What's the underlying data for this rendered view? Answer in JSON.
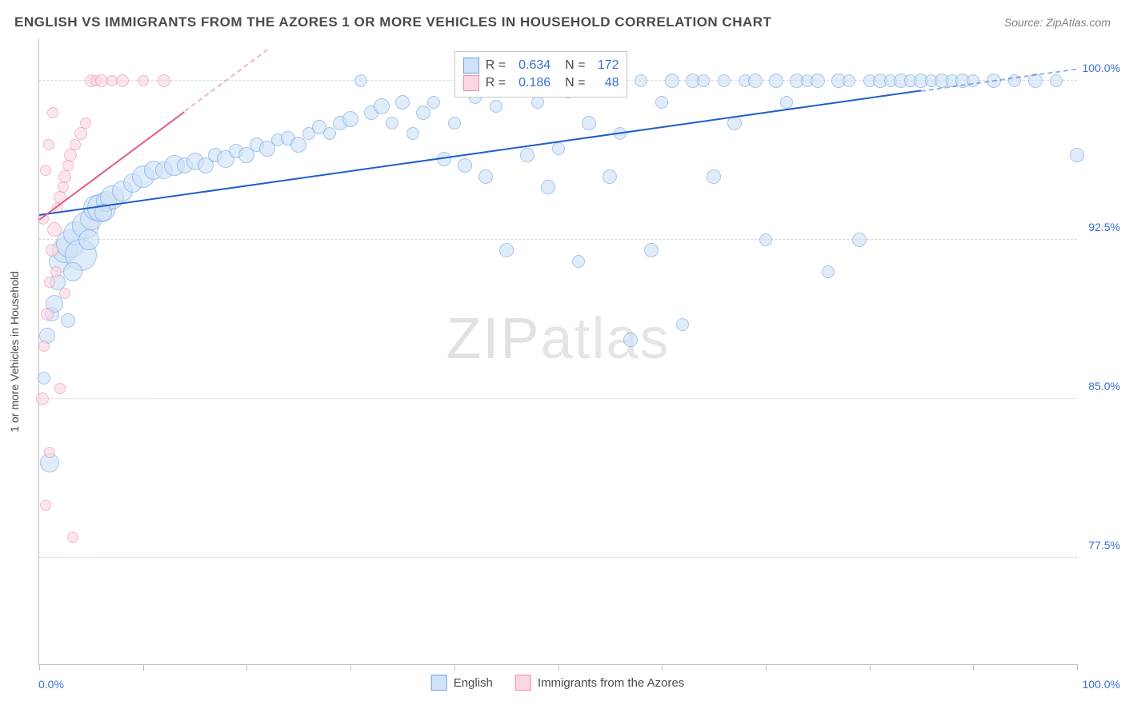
{
  "title": "ENGLISH VS IMMIGRANTS FROM THE AZORES 1 OR MORE VEHICLES IN HOUSEHOLD CORRELATION CHART",
  "source": "Source: ZipAtlas.com",
  "yaxis_title": "1 or more Vehicles in Household",
  "watermark": {
    "bold": "ZIP",
    "thin": "atlas"
  },
  "chart": {
    "type": "scatter",
    "xlim": [
      0,
      100
    ],
    "ylim": [
      72.5,
      102
    ],
    "x_min_label": "0.0%",
    "x_max_label": "100.0%",
    "x_ticks": [
      0,
      10,
      20,
      30,
      40,
      50,
      60,
      70,
      80,
      90,
      100
    ],
    "y_gridlines": [
      {
        "y": 100.0,
        "label": "100.0%"
      },
      {
        "y": 92.5,
        "label": "92.5%"
      },
      {
        "y": 85.0,
        "label": "85.0%"
      },
      {
        "y": 77.5,
        "label": "77.5%"
      }
    ],
    "background_color": "#ffffff",
    "grid_color": "#d9d9d9",
    "axis_color": "#bfbfbf",
    "value_text_color": "#3b6fd6",
    "series": [
      {
        "name": "English",
        "fill": "#cfe2f8",
        "stroke": "#6ea3e0",
        "fill_opacity": 0.62,
        "trend": {
          "x1": 0,
          "y1": 93.7,
          "x2": 100,
          "y2": 100.6,
          "color": "#1f5fc7",
          "dash_after_x": 85
        },
        "r_label": "R =",
        "r_value": "0.634",
        "n_label": "N =",
        "n_value": "172",
        "points": [
          {
            "x": 1.0,
            "y": 82.0,
            "r": 12
          },
          {
            "x": 0.8,
            "y": 88.0,
            "r": 10
          },
          {
            "x": 1.2,
            "y": 89.0,
            "r": 9
          },
          {
            "x": 1.5,
            "y": 89.5,
            "r": 11
          },
          {
            "x": 2.0,
            "y": 91.5,
            "r": 14
          },
          {
            "x": 2.5,
            "y": 92.0,
            "r": 16
          },
          {
            "x": 3.0,
            "y": 92.3,
            "r": 18
          },
          {
            "x": 3.5,
            "y": 92.8,
            "r": 15
          },
          {
            "x": 4.0,
            "y": 91.8,
            "r": 20
          },
          {
            "x": 4.5,
            "y": 93.2,
            "r": 17
          },
          {
            "x": 5.0,
            "y": 93.5,
            "r": 14
          },
          {
            "x": 5.5,
            "y": 94.0,
            "r": 16
          },
          {
            "x": 6.0,
            "y": 94.0,
            "r": 18
          },
          {
            "x": 6.5,
            "y": 94.3,
            "r": 13
          },
          {
            "x": 7.0,
            "y": 94.5,
            "r": 15
          },
          {
            "x": 8.0,
            "y": 94.8,
            "r": 13
          },
          {
            "x": 9.0,
            "y": 95.2,
            "r": 12
          },
          {
            "x": 10.0,
            "y": 95.5,
            "r": 14
          },
          {
            "x": 11.0,
            "y": 95.8,
            "r": 12
          },
          {
            "x": 12.0,
            "y": 95.8,
            "r": 11
          },
          {
            "x": 13.0,
            "y": 96.0,
            "r": 13
          },
          {
            "x": 14.0,
            "y": 96.0,
            "r": 10
          },
          {
            "x": 15.0,
            "y": 96.2,
            "r": 11
          },
          {
            "x": 16.0,
            "y": 96.0,
            "r": 10
          },
          {
            "x": 17.0,
            "y": 96.5,
            "r": 9
          },
          {
            "x": 18.0,
            "y": 96.3,
            "r": 11
          },
          {
            "x": 19.0,
            "y": 96.7,
            "r": 9
          },
          {
            "x": 20.0,
            "y": 96.5,
            "r": 10
          },
          {
            "x": 21.0,
            "y": 97.0,
            "r": 9
          },
          {
            "x": 22.0,
            "y": 96.8,
            "r": 10
          },
          {
            "x": 23.0,
            "y": 97.2,
            "r": 8
          },
          {
            "x": 24.0,
            "y": 97.3,
            "r": 9
          },
          {
            "x": 25.0,
            "y": 97.0,
            "r": 10
          },
          {
            "x": 26.0,
            "y": 97.5,
            "r": 8
          },
          {
            "x": 27.0,
            "y": 97.8,
            "r": 9
          },
          {
            "x": 28.0,
            "y": 97.5,
            "r": 8
          },
          {
            "x": 29.0,
            "y": 98.0,
            "r": 9
          },
          {
            "x": 30.0,
            "y": 98.2,
            "r": 10
          },
          {
            "x": 31.0,
            "y": 100.0,
            "r": 8
          },
          {
            "x": 32.0,
            "y": 98.5,
            "r": 9
          },
          {
            "x": 33.0,
            "y": 98.8,
            "r": 10
          },
          {
            "x": 34.0,
            "y": 98.0,
            "r": 8
          },
          {
            "x": 35.0,
            "y": 99.0,
            "r": 9
          },
          {
            "x": 36.0,
            "y": 97.5,
            "r": 8
          },
          {
            "x": 37.0,
            "y": 98.5,
            "r": 9
          },
          {
            "x": 38.0,
            "y": 99.0,
            "r": 8
          },
          {
            "x": 39.0,
            "y": 96.3,
            "r": 9
          },
          {
            "x": 40.0,
            "y": 98.0,
            "r": 8
          },
          {
            "x": 41.0,
            "y": 96.0,
            "r": 9
          },
          {
            "x": 42.0,
            "y": 99.2,
            "r": 8
          },
          {
            "x": 43.0,
            "y": 95.5,
            "r": 9
          },
          {
            "x": 44.0,
            "y": 98.8,
            "r": 8
          },
          {
            "x": 45.0,
            "y": 92.0,
            "r": 9
          },
          {
            "x": 46.0,
            "y": 99.5,
            "r": 8
          },
          {
            "x": 47.0,
            "y": 96.5,
            "r": 9
          },
          {
            "x": 48.0,
            "y": 99.0,
            "r": 8
          },
          {
            "x": 49.0,
            "y": 95.0,
            "r": 9
          },
          {
            "x": 50.0,
            "y": 96.8,
            "r": 8
          },
          {
            "x": 51.0,
            "y": 99.5,
            "r": 9
          },
          {
            "x": 52.0,
            "y": 91.5,
            "r": 8
          },
          {
            "x": 53.0,
            "y": 98.0,
            "r": 9
          },
          {
            "x": 54.0,
            "y": 100.0,
            "r": 8
          },
          {
            "x": 55.0,
            "y": 95.5,
            "r": 9
          },
          {
            "x": 56.0,
            "y": 97.5,
            "r": 8
          },
          {
            "x": 57.0,
            "y": 87.8,
            "r": 9
          },
          {
            "x": 58.0,
            "y": 100.0,
            "r": 8
          },
          {
            "x": 59.0,
            "y": 92.0,
            "r": 9
          },
          {
            "x": 60.0,
            "y": 99.0,
            "r": 8
          },
          {
            "x": 61.0,
            "y": 100.0,
            "r": 9
          },
          {
            "x": 62.0,
            "y": 88.5,
            "r": 8
          },
          {
            "x": 63.0,
            "y": 100.0,
            "r": 9
          },
          {
            "x": 64.0,
            "y": 100.0,
            "r": 8
          },
          {
            "x": 65.0,
            "y": 95.5,
            "r": 9
          },
          {
            "x": 66.0,
            "y": 100.0,
            "r": 8
          },
          {
            "x": 67.0,
            "y": 98.0,
            "r": 9
          },
          {
            "x": 68.0,
            "y": 100.0,
            "r": 8
          },
          {
            "x": 69.0,
            "y": 100.0,
            "r": 9
          },
          {
            "x": 70.0,
            "y": 92.5,
            "r": 8
          },
          {
            "x": 71.0,
            "y": 100.0,
            "r": 9
          },
          {
            "x": 72.0,
            "y": 99.0,
            "r": 8
          },
          {
            "x": 73.0,
            "y": 100.0,
            "r": 9
          },
          {
            "x": 74.0,
            "y": 100.0,
            "r": 8
          },
          {
            "x": 75.0,
            "y": 100.0,
            "r": 9
          },
          {
            "x": 76.0,
            "y": 91.0,
            "r": 8
          },
          {
            "x": 77.0,
            "y": 100.0,
            "r": 9
          },
          {
            "x": 78.0,
            "y": 100.0,
            "r": 8
          },
          {
            "x": 79.0,
            "y": 92.5,
            "r": 9
          },
          {
            "x": 80.0,
            "y": 100.0,
            "r": 8
          },
          {
            "x": 81.0,
            "y": 100.0,
            "r": 9
          },
          {
            "x": 82.0,
            "y": 100.0,
            "r": 8
          },
          {
            "x": 83.0,
            "y": 100.0,
            "r": 9
          },
          {
            "x": 84.0,
            "y": 100.0,
            "r": 8
          },
          {
            "x": 85.0,
            "y": 100.0,
            "r": 9
          },
          {
            "x": 86.0,
            "y": 100.0,
            "r": 8
          },
          {
            "x": 87.0,
            "y": 100.0,
            "r": 9
          },
          {
            "x": 88.0,
            "y": 100.0,
            "r": 8
          },
          {
            "x": 89.0,
            "y": 100.0,
            "r": 9
          },
          {
            "x": 90.0,
            "y": 100.0,
            "r": 8
          },
          {
            "x": 92.0,
            "y": 100.0,
            "r": 9
          },
          {
            "x": 94.0,
            "y": 100.0,
            "r": 8
          },
          {
            "x": 96.0,
            "y": 100.0,
            "r": 9
          },
          {
            "x": 98.0,
            "y": 100.0,
            "r": 8
          },
          {
            "x": 100.0,
            "y": 96.5,
            "r": 9
          },
          {
            "x": 3.2,
            "y": 91.0,
            "r": 12
          },
          {
            "x": 4.8,
            "y": 92.5,
            "r": 13
          },
          {
            "x": 6.2,
            "y": 93.8,
            "r": 11
          },
          {
            "x": 1.8,
            "y": 90.5,
            "r": 10
          },
          {
            "x": 2.8,
            "y": 88.7,
            "r": 9
          },
          {
            "x": 0.5,
            "y": 86.0,
            "r": 8
          }
        ]
      },
      {
        "name": "Immigrants from the Azores",
        "fill": "#fbd7e1",
        "stroke": "#ec8fac",
        "fill_opacity": 0.62,
        "trend": {
          "x1": 0,
          "y1": 93.5,
          "x2": 22,
          "y2": 101.5,
          "color": "#e15b89",
          "dash_after_x": 14
        },
        "r_label": "R =",
        "r_value": "0.186",
        "n_label": "N =",
        "n_value": "48",
        "points": [
          {
            "x": 0.3,
            "y": 85.0,
            "r": 8
          },
          {
            "x": 0.5,
            "y": 87.5,
            "r": 7
          },
          {
            "x": 0.8,
            "y": 89.0,
            "r": 8
          },
          {
            "x": 1.0,
            "y": 90.5,
            "r": 7
          },
          {
            "x": 1.2,
            "y": 92.0,
            "r": 8
          },
          {
            "x": 1.5,
            "y": 93.0,
            "r": 9
          },
          {
            "x": 1.8,
            "y": 94.0,
            "r": 7
          },
          {
            "x": 2.0,
            "y": 94.5,
            "r": 8
          },
          {
            "x": 2.3,
            "y": 95.0,
            "r": 7
          },
          {
            "x": 2.5,
            "y": 95.5,
            "r": 8
          },
          {
            "x": 2.8,
            "y": 96.0,
            "r": 7
          },
          {
            "x": 3.0,
            "y": 96.5,
            "r": 8
          },
          {
            "x": 3.5,
            "y": 97.0,
            "r": 7
          },
          {
            "x": 4.0,
            "y": 97.5,
            "r": 8
          },
          {
            "x": 4.5,
            "y": 98.0,
            "r": 7
          },
          {
            "x": 5.0,
            "y": 100.0,
            "r": 8
          },
          {
            "x": 5.5,
            "y": 100.0,
            "r": 7
          },
          {
            "x": 6.0,
            "y": 100.0,
            "r": 8
          },
          {
            "x": 7.0,
            "y": 100.0,
            "r": 7
          },
          {
            "x": 8.0,
            "y": 100.0,
            "r": 8
          },
          {
            "x": 10.0,
            "y": 100.0,
            "r": 7
          },
          {
            "x": 12.0,
            "y": 100.0,
            "r": 8
          },
          {
            "x": 1.0,
            "y": 82.5,
            "r": 7
          },
          {
            "x": 0.6,
            "y": 80.0,
            "r": 7
          },
          {
            "x": 3.2,
            "y": 78.5,
            "r": 7
          },
          {
            "x": 2.0,
            "y": 85.5,
            "r": 7
          },
          {
            "x": 2.5,
            "y": 90.0,
            "r": 7
          },
          {
            "x": 0.4,
            "y": 93.5,
            "r": 7
          },
          {
            "x": 0.6,
            "y": 95.8,
            "r": 7
          },
          {
            "x": 0.9,
            "y": 97.0,
            "r": 7
          },
          {
            "x": 1.3,
            "y": 98.5,
            "r": 7
          },
          {
            "x": 1.6,
            "y": 91.0,
            "r": 7
          }
        ]
      }
    ],
    "stats_box": {
      "left_pct": 40,
      "top_pct": 2
    },
    "legend": [
      {
        "label": "English",
        "fill": "#cfe2f8",
        "stroke": "#6ea3e0"
      },
      {
        "label": "Immigrants from the Azores",
        "fill": "#fbd7e1",
        "stroke": "#ec8fac"
      }
    ]
  }
}
